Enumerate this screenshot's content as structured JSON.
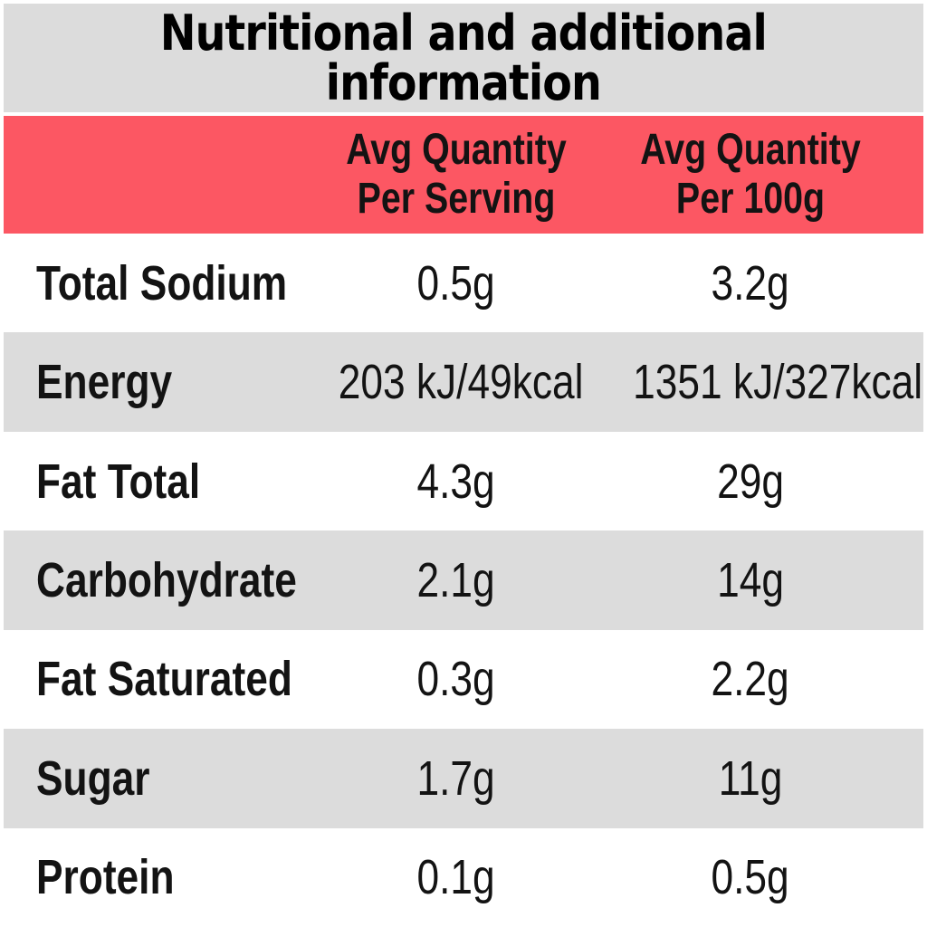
{
  "title": {
    "lines": [
      "Nutritional and additional",
      "information"
    ]
  },
  "table": {
    "header": {
      "columns": [
        {
          "lines": [
            "Avg Quantity",
            "Per Serving"
          ]
        },
        {
          "lines": [
            "Avg Quantity",
            "Per 100g"
          ]
        }
      ]
    },
    "rows": [
      {
        "label": "Total Sodium",
        "per_serving": "0.5g",
        "per_100g": "3.2g"
      },
      {
        "label": "Energy",
        "per_serving": "203 kJ/49kcal",
        "per_100g": "1351 kJ/327kcal"
      },
      {
        "label": "Fat Total",
        "per_serving": "4.3g",
        "per_100g": "29g"
      },
      {
        "label": "Carbohydrate",
        "per_serving": "2.1g",
        "per_100g": "14g"
      },
      {
        "label": "Fat Saturated",
        "per_serving": "0.3g",
        "per_100g": "2.2g"
      },
      {
        "label": "Sugar",
        "per_serving": "1.7g",
        "per_100g": "11g"
      },
      {
        "label": "Protein",
        "per_serving": "0.1g",
        "per_100g": "0.5g"
      }
    ]
  },
  "colors": {
    "header_background": "#fc5763",
    "stripe": "#dcdcdc",
    "title_background": "#dcdcdc",
    "page_background": "#ffffff",
    "text": "#131313"
  }
}
